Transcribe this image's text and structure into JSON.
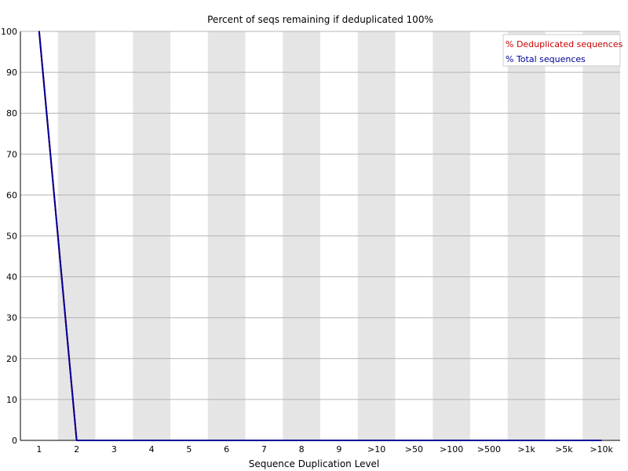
{
  "chart_data": {
    "type": "line",
    "title": "Percent of seqs remaining if deduplicated 100%",
    "xlabel": "Sequence Duplication Level",
    "ylabel": "",
    "categories": [
      "1",
      "2",
      "3",
      "4",
      "5",
      "6",
      "7",
      "8",
      "9",
      ">10",
      ">50",
      ">100",
      ">500",
      ">1k",
      ">5k",
      ">10k"
    ],
    "ylim": [
      0,
      100
    ],
    "yticks": [
      "0",
      "10",
      "20",
      "30",
      "40",
      "50",
      "60",
      "70",
      "80",
      "90",
      "100"
    ],
    "grid": true,
    "legend_position": "top-right",
    "series": [
      {
        "name": "% Deduplicated sequences",
        "color": "#cc0000",
        "values": [
          100,
          0,
          0,
          0,
          0,
          0,
          0,
          0,
          0,
          0,
          0,
          0,
          0,
          0,
          0,
          0
        ]
      },
      {
        "name": "% Total sequences",
        "color": "#000099",
        "values": [
          100,
          0,
          0,
          0,
          0,
          0,
          0,
          0,
          0,
          0,
          0,
          0,
          0,
          0,
          0,
          0
        ]
      }
    ],
    "colors": {
      "band": "#e5e5e5",
      "gridline": "#b4b4b4",
      "axis": "#000000"
    }
  }
}
